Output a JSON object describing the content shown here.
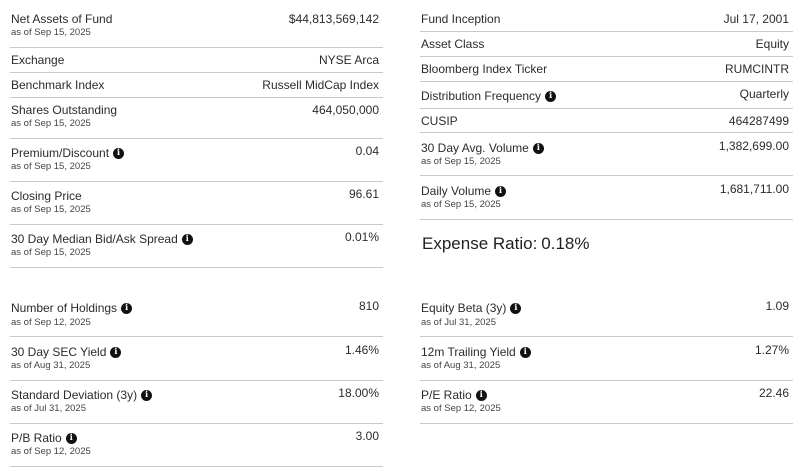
{
  "left_top": [
    {
      "label": "Net Assets of Fund",
      "value": "$44,813,569,142",
      "asof": "as of Sep 15, 2025",
      "info": false
    },
    {
      "label": "Exchange",
      "value": "NYSE Arca",
      "asof": "",
      "info": false
    },
    {
      "label": "Benchmark Index",
      "value": "Russell MidCap Index",
      "asof": "",
      "info": false
    },
    {
      "label": "Shares Outstanding",
      "value": "464,050,000",
      "asof": "as of Sep 15, 2025",
      "info": false
    },
    {
      "label": "Premium/Discount",
      "value": "0.04",
      "asof": "as of Sep 15, 2025",
      "info": true
    },
    {
      "label": "Closing Price",
      "value": "96.61",
      "asof": "as of Sep 15, 2025",
      "info": false
    },
    {
      "label": "30 Day Median Bid/Ask Spread",
      "value": "0.01%",
      "asof": "as of Sep 15, 2025",
      "info": true
    }
  ],
  "right_top": [
    {
      "label": "Fund Inception",
      "value": "Jul 17, 2001",
      "asof": "",
      "info": false
    },
    {
      "label": "Asset Class",
      "value": "Equity",
      "asof": "",
      "info": false
    },
    {
      "label": "Bloomberg Index Ticker",
      "value": "RUMCINTR",
      "asof": "",
      "info": false
    },
    {
      "label": "Distribution Frequency",
      "value": "Quarterly",
      "asof": "",
      "info": true
    },
    {
      "label": "CUSIP",
      "value": "464287499",
      "asof": "",
      "info": false
    },
    {
      "label": "30 Day Avg. Volume",
      "value": "1,382,699.00",
      "asof": "as of Sep 15, 2025",
      "info": true
    },
    {
      "label": "Daily Volume",
      "value": "1,681,711.00",
      "asof": "as of Sep 15, 2025",
      "info": true
    }
  ],
  "expense_ratio": {
    "label": "Expense Ratio:",
    "value": "0.18%"
  },
  "left_bottom": [
    {
      "label": "Number of Holdings",
      "value": "810",
      "asof": "as of Sep 12, 2025",
      "info": true
    },
    {
      "label": "30 Day SEC Yield",
      "value": "1.46%",
      "asof": "as of Aug 31, 2025",
      "info": true
    },
    {
      "label": "Standard Deviation (3y)",
      "value": "18.00%",
      "asof": "as of Jul 31, 2025",
      "info": true
    },
    {
      "label": "P/B Ratio",
      "value": "3.00",
      "asof": "as of Sep 12, 2025",
      "info": true
    }
  ],
  "right_bottom": [
    {
      "label": "Equity Beta (3y)",
      "value": "1.09",
      "asof": "as of Jul 31, 2025",
      "info": true
    },
    {
      "label": "12m Trailing Yield",
      "value": "1.27%",
      "asof": "as of Aug 31, 2025",
      "info": true
    },
    {
      "label": "P/E Ratio",
      "value": "22.46",
      "asof": "as of Sep 12, 2025",
      "info": true
    }
  ],
  "icons": {
    "info": "info-icon"
  }
}
